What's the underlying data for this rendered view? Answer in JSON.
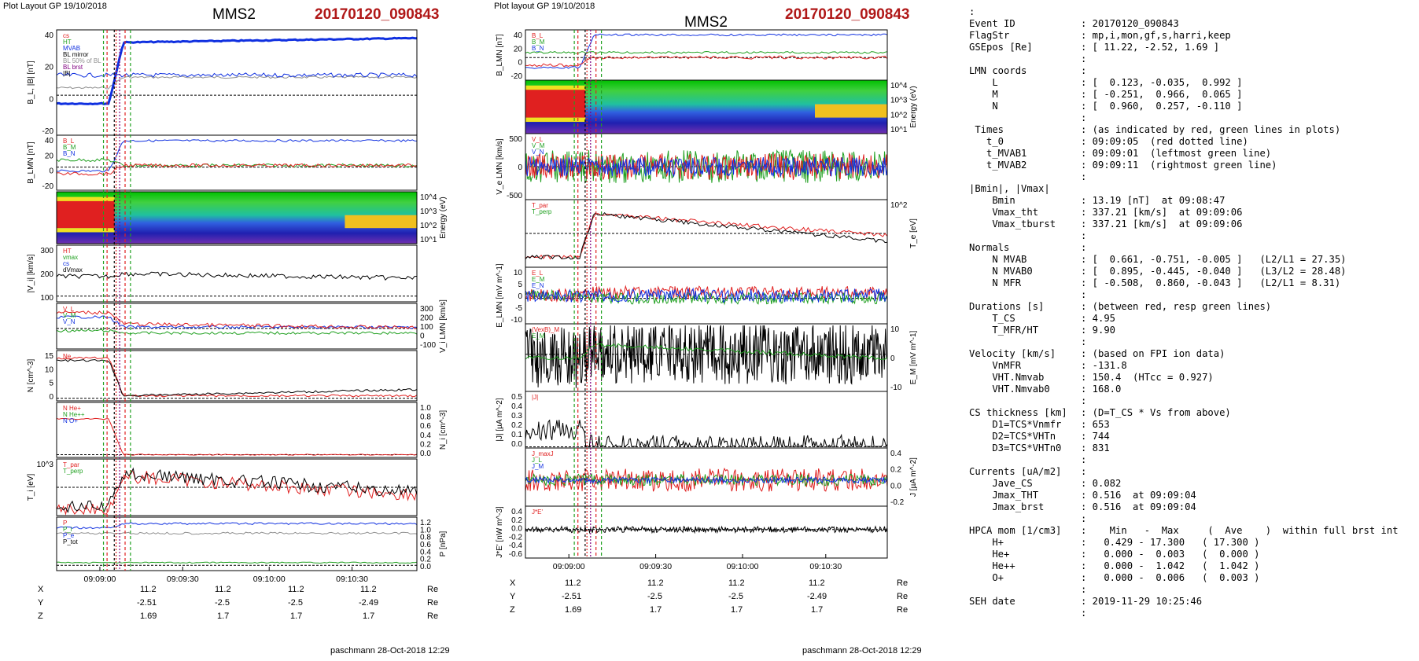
{
  "left": {
    "header": "Plot Layout GP 19/10/2018",
    "satellite": "MMS2",
    "event": "20170120_090843",
    "footer": "paschmann 28-Oct-2018 12:29",
    "time_ticks": [
      "09:09:00",
      "09:09:30",
      "09:10:00",
      "09:10:30"
    ],
    "panels": [
      {
        "ylabel": "B_L, |B| [nT]",
        "yticks": [
          "40",
          "20",
          "0",
          "-20"
        ],
        "legend": [
          "cs",
          "HT",
          "MVAB",
          "BL mirror",
          "BL 50% of BL",
          "BL brst",
          "|B|"
        ]
      },
      {
        "ylabel": "B_LMN [nT]",
        "yticks": [
          "40",
          "20",
          "0",
          "-20"
        ],
        "legend": [
          "B_L",
          "B_M",
          "B_N"
        ]
      },
      {
        "ylabel": "Energy (eV)",
        "yticks": [
          "10^4",
          "10^3",
          "10^2",
          "10^1"
        ]
      },
      {
        "ylabel": "|V_i| [km/s]",
        "yticks": [
          "300",
          "200",
          "100"
        ],
        "legend": [
          "HT",
          "vmax",
          "cs",
          "dVmax"
        ]
      },
      {
        "ylabel": "V_i LMN [km/s]",
        "yticks": [
          "300",
          "200",
          "100",
          "0",
          "-100"
        ],
        "legend": [
          "V_L",
          "V_M",
          "V_N"
        ]
      },
      {
        "ylabel": "N [cm^-3]",
        "yticks": [
          "15",
          "10",
          "5",
          "0"
        ],
        "legend": [
          "Ne"
        ]
      },
      {
        "ylabel": "N_i [cm^-3]",
        "yticks": [
          "1.0",
          "0.8",
          "0.6",
          "0.4",
          "0.2",
          "0.0"
        ],
        "legend": [
          "N He+",
          "N He++",
          "N O+"
        ]
      },
      {
        "ylabel": "T_i [eV]",
        "yticks": [
          "10^3"
        ],
        "legend": [
          "T_par",
          "T_perp"
        ]
      },
      {
        "ylabel": "P [nPa]",
        "yticks": [
          "1.2",
          "1.0",
          "0.8",
          "0.6",
          "0.4",
          "0.2",
          "0.0"
        ],
        "legend": [
          "P",
          "P_i",
          "P_e",
          "P_tot"
        ]
      }
    ],
    "coords": {
      "x": {
        "label": "X",
        "values": [
          "11.2",
          "11.2",
          "11.2",
          "11.2"
        ],
        "unit": "Re"
      },
      "y": {
        "label": "Y",
        "values": [
          "-2.51",
          "-2.5",
          "-2.5",
          "-2.49"
        ],
        "unit": "Re"
      },
      "z": {
        "label": "Z",
        "values": [
          "1.69",
          "1.7",
          "1.7",
          "1.7"
        ],
        "unit": "Re"
      }
    }
  },
  "middle": {
    "header": "Plot layout GP 19/10/2018",
    "satellite": "MMS2",
    "event": "20170120_090843",
    "footer": "paschmann 28-Oct-2018 12:29",
    "time_ticks": [
      "09:09:00",
      "09:09:30",
      "09:10:00",
      "09:10:30"
    ],
    "panels": [
      {
        "ylabel": "B_LMN [nT]",
        "yticks": [
          "40",
          "20",
          "0",
          "-20"
        ],
        "legend": [
          "B_L",
          "B_M",
          "B_N"
        ]
      },
      {
        "ylabel": "Energy (eV)",
        "yticks": [
          "10^4",
          "10^3",
          "10^2",
          "10^1"
        ]
      },
      {
        "ylabel": "V_e LMN [km/s]",
        "yticks": [
          "500",
          "0",
          "-500"
        ],
        "legend": [
          "V_L",
          "V_M",
          "V_N"
        ]
      },
      {
        "ylabel": "T_e [eV]",
        "yticks": [
          "10^2"
        ],
        "legend": [
          "T_par",
          "T_perp"
        ]
      },
      {
        "ylabel": "E_LMN [mV m^-1]",
        "yticks": [
          "10",
          "5",
          "0",
          "-5",
          "-10"
        ],
        "legend": [
          "E_L",
          "E_M",
          "E_N"
        ]
      },
      {
        "ylabel": "E_M [mV m^-1]",
        "yticks": [
          "10",
          "0",
          "-10"
        ],
        "legend": [
          "(VexB)_M",
          "E_M"
        ]
      },
      {
        "ylabel": "|J| [µA m^-2]",
        "yticks": [
          "0.5",
          "0.4",
          "0.3",
          "0.2",
          "0.1",
          "0.0"
        ],
        "legend": [
          "|J|"
        ]
      },
      {
        "ylabel": "J [µA m^-2]",
        "yticks": [
          "0.4",
          "0.2",
          "0.0",
          "-0.2"
        ],
        "legend": [
          "J_maxJ",
          "J_L",
          "J_M"
        ]
      },
      {
        "ylabel": "J*E' [nW m^-3]",
        "yticks": [
          "0.4",
          "0.2",
          "0.0",
          "-0.2",
          "-0.4",
          "-0.6"
        ],
        "legend": [
          "J*E'"
        ]
      }
    ],
    "coords": {
      "x": {
        "label": "X",
        "values": [
          "11.2",
          "11.2",
          "11.2",
          "11.2"
        ],
        "unit": "Re"
      },
      "y": {
        "label": "Y",
        "values": [
          "-2.51",
          "-2.5",
          "-2.5",
          "-2.49"
        ],
        "unit": "Re"
      },
      "z": {
        "label": "Z",
        "values": [
          "1.69",
          "1.7",
          "1.7",
          "1.7"
        ],
        "unit": "Re"
      }
    }
  },
  "info_lines": [
    [
      ":",
      ""
    ],
    [
      "Event ID",
      ": 20170120_090843"
    ],
    [
      "FlagStr",
      ": mp,i,mon,gf,s,harri,keep"
    ],
    [
      "GSEpos [Re]",
      ": [ 11.22, -2.52, 1.69 ]"
    ],
    [
      "",
      ":"
    ],
    [
      "LMN coords",
      ":"
    ],
    [
      "    L",
      ": [  0.123, -0.035,  0.992 ]"
    ],
    [
      "    M",
      ": [ -0.251,  0.966,  0.065 ]"
    ],
    [
      "    N",
      ": [  0.960,  0.257, -0.110 ]"
    ],
    [
      "",
      ":"
    ],
    [
      " Times",
      ": (as indicated by red, green lines in plots)"
    ],
    [
      "   t_0",
      ": 09:09:05  (red dotted line)"
    ],
    [
      "   t_MVAB1",
      ": 09:09:01  (leftmost green line)"
    ],
    [
      "   t_MVAB2",
      ": 09:09:11  (rightmost green line)"
    ],
    [
      "",
      ":"
    ],
    [
      "|Bmin|, |Vmax|",
      ""
    ],
    [
      "    Bmin",
      ": 13.19 [nT]  at 09:08:47"
    ],
    [
      "    Vmax_tht",
      ": 337.21 [km/s]  at 09:09:06"
    ],
    [
      "    Vmax_tburst",
      ": 337.21 [km/s]  at 09:09:06"
    ],
    [
      "",
      ":"
    ],
    [
      "Normals",
      ":"
    ],
    [
      "    N MVAB",
      ": [  0.661, -0.751, -0.005 ]   (L2/L1 = 27.35)"
    ],
    [
      "    N MVAB0",
      ": [  0.895, -0.445, -0.040 ]   (L3/L2 = 28.48)"
    ],
    [
      "    N MFR",
      ": [ -0.508,  0.860, -0.043 ]   (L2/L1 = 8.31)"
    ],
    [
      "",
      ":"
    ],
    [
      "Durations [s]",
      ": (between red, resp green lines)"
    ],
    [
      "    T_CS",
      ": 4.95"
    ],
    [
      "    T_MFR/HT",
      ": 9.90"
    ],
    [
      "",
      ":"
    ],
    [
      "Velocity [km/s]",
      ": (based on FPI ion data)"
    ],
    [
      "    VnMFR",
      ": -131.8"
    ],
    [
      "    VHT.Nmvab",
      ": 150.4  (HTcc = 0.927)"
    ],
    [
      "    VHT.Nmvab0",
      ": 168.0"
    ],
    [
      "",
      ":"
    ],
    [
      "CS thickness [km]",
      ": (D=T_CS * Vs from above)"
    ],
    [
      "    D1=TCS*Vnmfr",
      ": 653"
    ],
    [
      "    D2=TCS*VHTn",
      ": 744"
    ],
    [
      "    D3=TCS*VHTn0",
      ": 831"
    ],
    [
      "",
      ":"
    ],
    [
      "Currents [uA/m2]",
      ":"
    ],
    [
      "    Jave_CS",
      ": 0.082"
    ],
    [
      "    Jmax_THT",
      ": 0.516  at 09:09:04"
    ],
    [
      "    Jmax_brst",
      ": 0.516  at 09:09:04"
    ],
    [
      "",
      ":"
    ],
    [
      "HPCA mom [1/cm3]",
      ":    Min   -  Max     (  Ave    )  within full brst int"
    ],
    [
      "    H+",
      ":   0.429 - 17.300   ( 17.300 )"
    ],
    [
      "    He+",
      ":   0.000 -  0.003   (  0.000 )"
    ],
    [
      "    He++",
      ":   0.000 -  1.042   (  1.042 )"
    ],
    [
      "    O+",
      ":   0.000 -  0.006   (  0.003 )"
    ],
    [
      "",
      ":"
    ],
    [
      "SEH date",
      ": 2019-11-29 10:25:46"
    ],
    [
      "",
      ":"
    ]
  ],
  "colors": {
    "cs": "#e02020",
    "ht": "#20a020",
    "bl": "#1030e0",
    "black": "#000000",
    "gray": "#909090"
  }
}
